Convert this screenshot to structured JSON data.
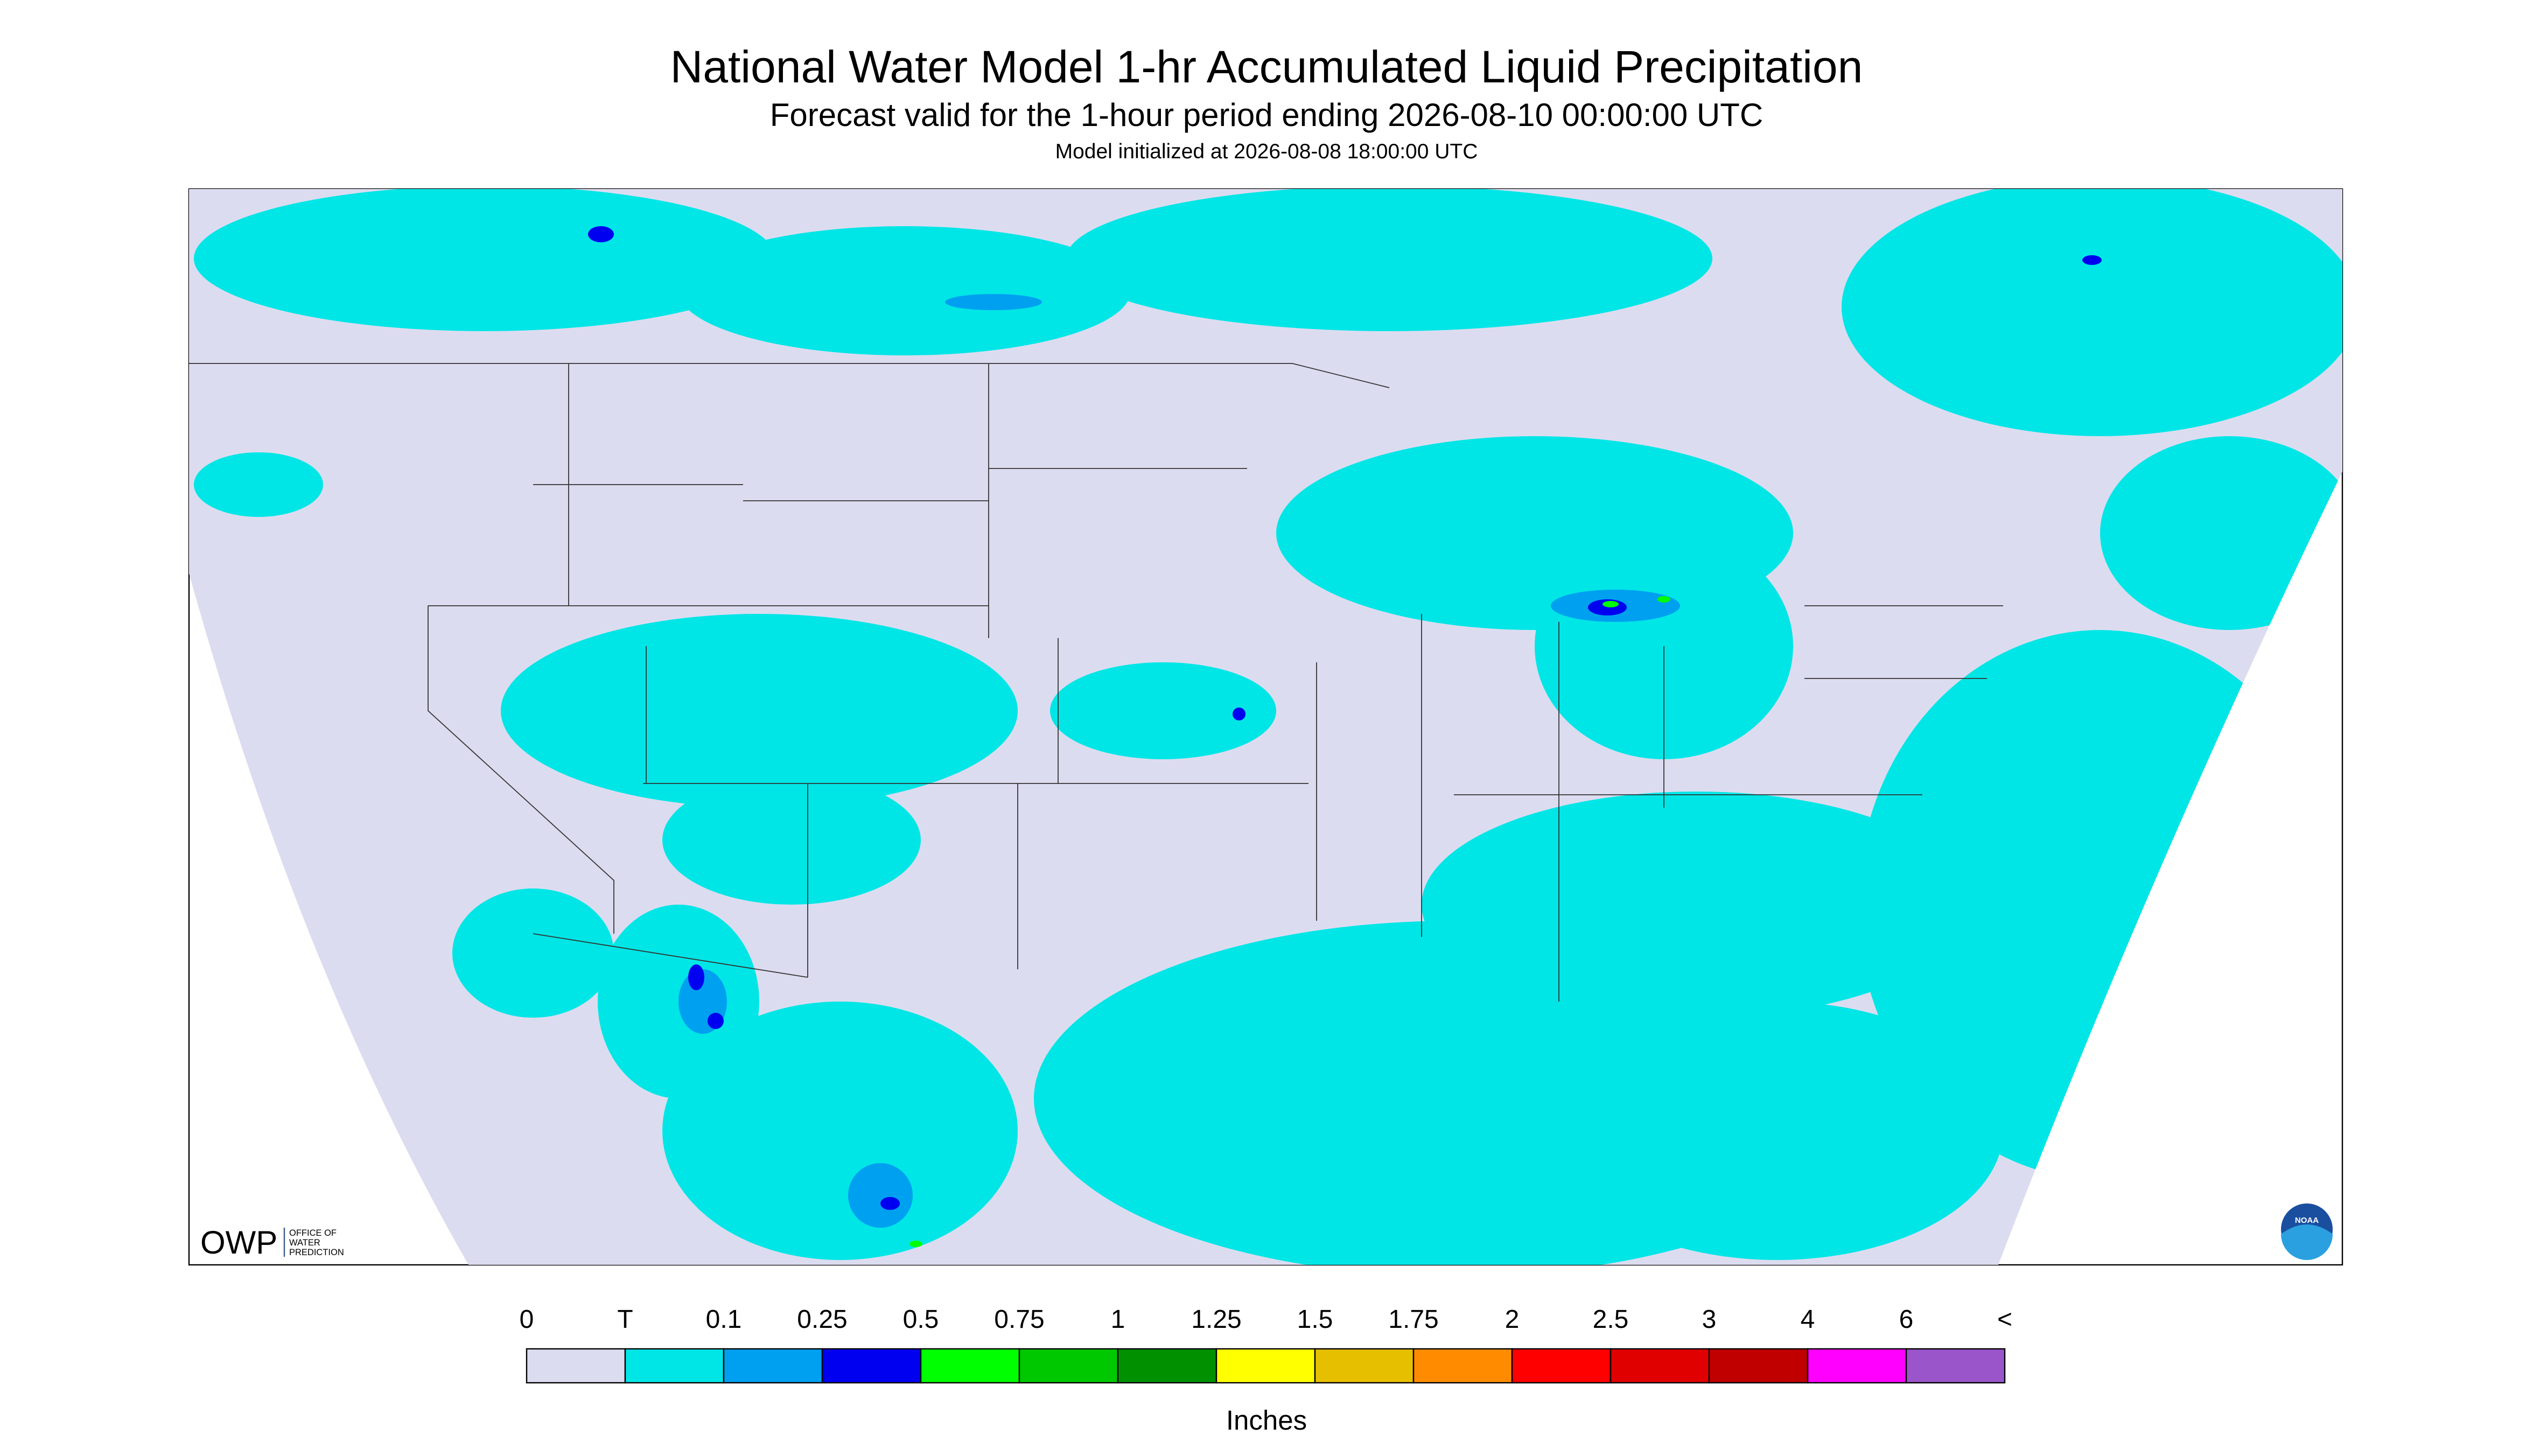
{
  "header": {
    "title": "National Water Model 1-hr Accumulated Liquid Precipitation",
    "subtitle": "Forecast valid for the 1-hour period ending 2026-08-10 00:00:00 UTC",
    "initialized": "Model initialized at 2026-08-08 18:00:00 UTC"
  },
  "legend": {
    "labels": [
      "0",
      "T",
      "0.1",
      "0.25",
      "0.5",
      "0.75",
      "1",
      "1.25",
      "1.5",
      "1.75",
      "2",
      "2.5",
      "3",
      "4",
      "6",
      "<"
    ],
    "colors": [
      "#dcdcf0",
      "#00e6e6",
      "#00a0f0",
      "#0000f0",
      "#00ff00",
      "#00c800",
      "#009000",
      "#ffff00",
      "#e6c000",
      "#ff8c00",
      "#ff0000",
      "#e00000",
      "#c00000",
      "#ff00ff",
      "#9955c9"
    ],
    "units": "Inches"
  },
  "logos": {
    "owp": "OWP",
    "owp_lines": [
      "OFFICE OF",
      "WATER",
      "PREDICTION"
    ],
    "noaa": "NOAA"
  }
}
